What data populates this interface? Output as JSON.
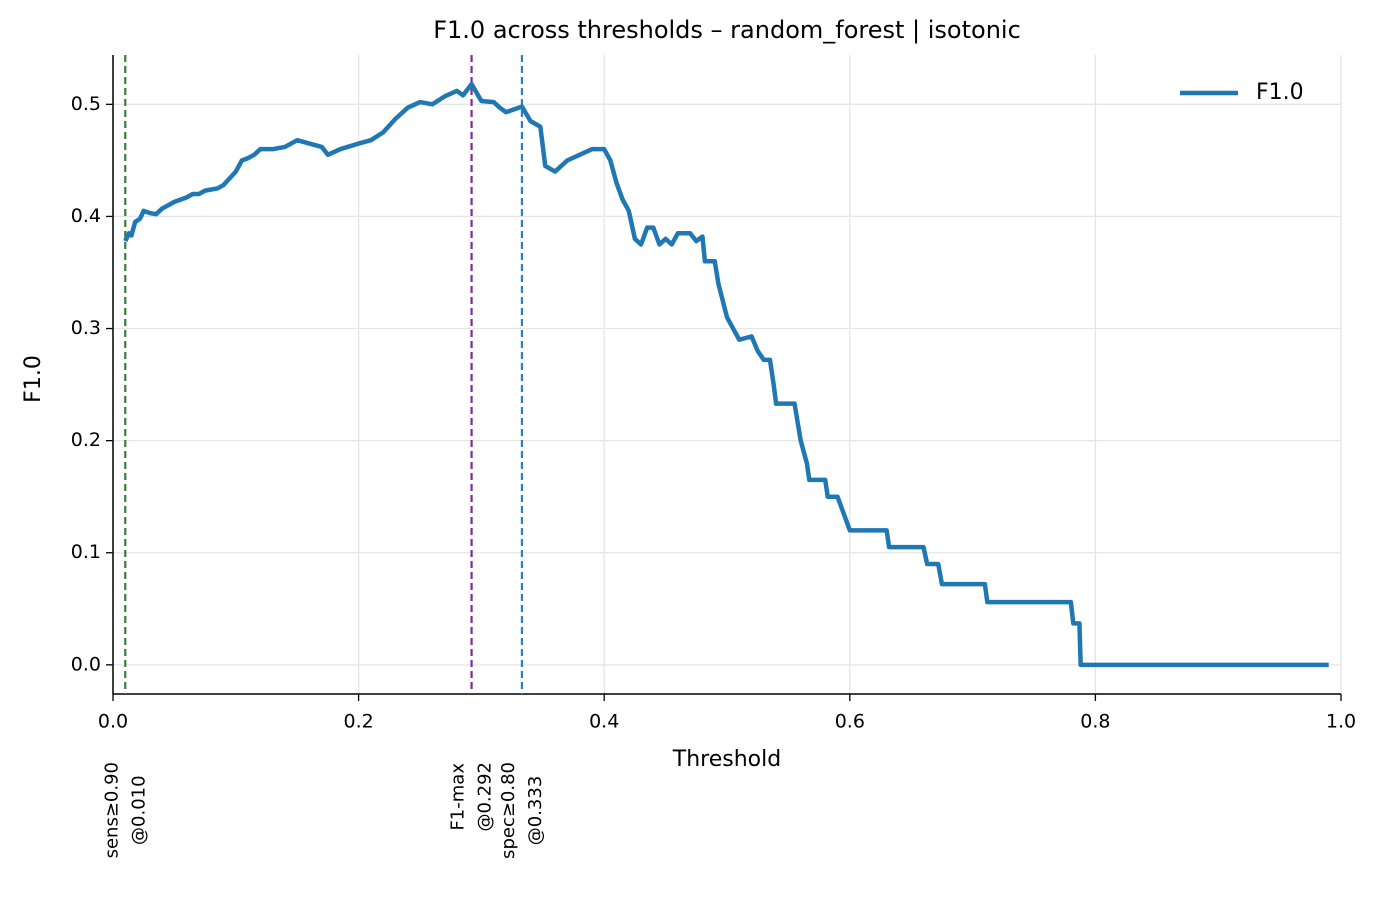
{
  "chart_data": {
    "type": "line",
    "title": "F1.0 across thresholds – random_forest | isotonic",
    "x_label": "Threshold",
    "y_label": "F1.0",
    "xlim": [
      0,
      1
    ],
    "ylim": [
      -0.026,
      0.544
    ],
    "xticks": [
      {
        "value": 0,
        "label": "0.0"
      },
      0.2,
      0.4,
      0.6,
      0.8,
      {
        "value": 1,
        "label": "1.0"
      }
    ],
    "yticks": [
      {
        "value": 0,
        "label": "0.0"
      },
      0.1,
      0.2,
      0.3,
      0.4,
      0.5
    ],
    "grid": true,
    "legend": "upper right",
    "series": [
      {
        "name": "F1.0",
        "color": "#1f77b4",
        "x": [
          0.01,
          0.013,
          0.015,
          0.018,
          0.022,
          0.025,
          0.03,
          0.035,
          0.04,
          0.05,
          0.06,
          0.065,
          0.07,
          0.075,
          0.085,
          0.09,
          0.1,
          0.105,
          0.11,
          0.115,
          0.12,
          0.13,
          0.14,
          0.15,
          0.16,
          0.17,
          0.175,
          0.185,
          0.2,
          0.21,
          0.22,
          0.23,
          0.24,
          0.25,
          0.26,
          0.27,
          0.28,
          0.285,
          0.292,
          0.3,
          0.31,
          0.315,
          0.32,
          0.333,
          0.34,
          0.348,
          0.352,
          0.36,
          0.37,
          0.38,
          0.39,
          0.4,
          0.405,
          0.41,
          0.415,
          0.42,
          0.425,
          0.43,
          0.435,
          0.44,
          0.445,
          0.45,
          0.455,
          0.46,
          0.47,
          0.475,
          0.48,
          0.482,
          0.49,
          0.493,
          0.5,
          0.505,
          0.51,
          0.52,
          0.525,
          0.53,
          0.535,
          0.538,
          0.54,
          0.555,
          0.56,
          0.565,
          0.567,
          0.58,
          0.582,
          0.59,
          0.595,
          0.6,
          0.63,
          0.632,
          0.66,
          0.663,
          0.672,
          0.675,
          0.71,
          0.712,
          0.78,
          0.782,
          0.787,
          0.788,
          0.99
        ],
        "values": [
          0.378,
          0.385,
          0.383,
          0.395,
          0.398,
          0.405,
          0.403,
          0.402,
          0.407,
          0.413,
          0.417,
          0.42,
          0.42,
          0.423,
          0.425,
          0.428,
          0.44,
          0.45,
          0.452,
          0.455,
          0.46,
          0.46,
          0.462,
          0.468,
          0.465,
          0.462,
          0.455,
          0.46,
          0.465,
          0.468,
          0.475,
          0.487,
          0.497,
          0.502,
          0.5,
          0.507,
          0.512,
          0.508,
          0.518,
          0.503,
          0.502,
          0.497,
          0.493,
          0.498,
          0.485,
          0.48,
          0.445,
          0.44,
          0.45,
          0.455,
          0.46,
          0.46,
          0.45,
          0.43,
          0.415,
          0.405,
          0.38,
          0.375,
          0.39,
          0.39,
          0.375,
          0.38,
          0.375,
          0.385,
          0.385,
          0.378,
          0.382,
          0.36,
          0.36,
          0.34,
          0.31,
          0.3,
          0.29,
          0.293,
          0.28,
          0.272,
          0.272,
          0.25,
          0.233,
          0.233,
          0.2,
          0.18,
          0.165,
          0.165,
          0.15,
          0.15,
          0.135,
          0.12,
          0.12,
          0.105,
          0.105,
          0.09,
          0.09,
          0.072,
          0.072,
          0.056,
          0.056,
          0.037,
          0.037,
          0.0,
          0.0
        ]
      }
    ],
    "markers": [
      {
        "x": 0.01,
        "color": "#3a7d3a",
        "label": [
          "sens≥0.90",
          "@0.010"
        ]
      },
      {
        "x": 0.292,
        "color": "#7b2d9b",
        "label": [
          "F1-max",
          "@0.292"
        ]
      },
      {
        "x": 0.333,
        "color": "#2f7fc4",
        "label": [
          "spec≥0.80",
          "@0.333"
        ]
      }
    ]
  }
}
